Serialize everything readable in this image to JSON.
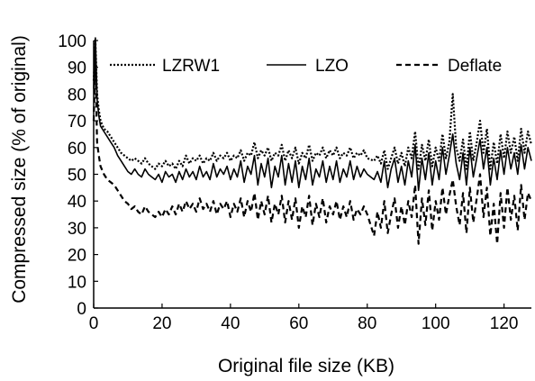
{
  "chart_data": {
    "type": "line",
    "title": "",
    "xlabel": "Original file size (KB)",
    "ylabel": "Compressed size (% of original)",
    "xlim": [
      0,
      128
    ],
    "ylim": [
      0,
      100
    ],
    "x_ticks": [
      0,
      20,
      40,
      60,
      80,
      100,
      120
    ],
    "y_ticks": [
      0,
      10,
      20,
      30,
      40,
      50,
      60,
      70,
      80,
      90,
      100
    ],
    "grid": false,
    "legend_position": "top",
    "series": [
      {
        "name": "LZRW1",
        "style": "dotted",
        "x": [
          0,
          0.5,
          1,
          1.5,
          2,
          3,
          4,
          5,
          6,
          7,
          8,
          9,
          10,
          11,
          12,
          13,
          14,
          15,
          16,
          17,
          18,
          19,
          20,
          21,
          22,
          23,
          24,
          25,
          26,
          27,
          28,
          29,
          30,
          31,
          32,
          33,
          34,
          35,
          36,
          37,
          38,
          39,
          40,
          41,
          42,
          43,
          44,
          45,
          46,
          47,
          48,
          49,
          50,
          51,
          52,
          53,
          54,
          55,
          56,
          57,
          58,
          59,
          60,
          61,
          62,
          63,
          64,
          65,
          66,
          67,
          68,
          69,
          70,
          71,
          72,
          73,
          74,
          75,
          76,
          77,
          78,
          79,
          80,
          82,
          83,
          84,
          85,
          86,
          87,
          88,
          89,
          90,
          91,
          92,
          93,
          94,
          95,
          96,
          97,
          98,
          99,
          100,
          101,
          102,
          103,
          104,
          105,
          106,
          107,
          108,
          109,
          110,
          111,
          112,
          113,
          114,
          115,
          116,
          117,
          118,
          119,
          120,
          121,
          122,
          123,
          124,
          125,
          126,
          127,
          128
        ],
        "y": [
          85,
          100,
          80,
          74,
          70,
          67,
          66,
          64,
          62,
          60,
          58,
          57,
          56,
          55,
          56,
          55,
          54,
          56,
          54,
          53,
          52,
          54,
          53,
          55,
          53,
          54,
          52,
          55,
          53,
          57,
          54,
          56,
          55,
          57,
          54,
          56,
          55,
          58,
          55,
          57,
          56,
          58,
          55,
          57,
          56,
          59,
          55,
          58,
          57,
          62,
          56,
          59,
          57,
          60,
          55,
          58,
          57,
          61,
          55,
          59,
          56,
          60,
          54,
          58,
          56,
          61,
          55,
          58,
          57,
          60,
          56,
          59,
          57,
          60,
          56,
          58,
          57,
          60,
          56,
          58,
          57,
          59,
          56,
          55,
          57,
          54,
          59,
          52,
          56,
          60,
          54,
          58,
          53,
          60,
          56,
          66,
          52,
          61,
          55,
          63,
          53,
          60,
          55,
          65,
          56,
          62,
          80,
          60,
          55,
          63,
          52,
          66,
          55,
          62,
          70,
          58,
          67,
          52,
          62,
          54,
          65,
          56,
          66,
          58,
          64,
          55,
          67,
          58,
          66,
          61
        ]
      },
      {
        "name": "LZO",
        "style": "solid",
        "x": [
          0,
          0.5,
          1,
          1.5,
          2,
          3,
          4,
          5,
          6,
          7,
          8,
          9,
          10,
          11,
          12,
          13,
          14,
          15,
          16,
          17,
          18,
          19,
          20,
          21,
          22,
          23,
          24,
          25,
          26,
          27,
          28,
          29,
          30,
          31,
          32,
          33,
          34,
          35,
          36,
          37,
          38,
          39,
          40,
          41,
          42,
          43,
          44,
          45,
          46,
          47,
          48,
          49,
          50,
          51,
          52,
          53,
          54,
          55,
          56,
          57,
          58,
          59,
          60,
          61,
          62,
          63,
          64,
          65,
          66,
          67,
          68,
          69,
          70,
          71,
          72,
          73,
          74,
          75,
          76,
          77,
          78,
          79,
          80,
          82,
          83,
          84,
          85,
          86,
          87,
          88,
          89,
          90,
          91,
          92,
          93,
          94,
          95,
          96,
          97,
          98,
          99,
          100,
          101,
          102,
          103,
          104,
          105,
          106,
          107,
          108,
          109,
          110,
          111,
          112,
          113,
          114,
          115,
          116,
          117,
          118,
          119,
          120,
          121,
          122,
          123,
          124,
          125,
          126,
          127,
          128
        ],
        "y": [
          82,
          101,
          78,
          72,
          68,
          66,
          64,
          62,
          60,
          57,
          55,
          53,
          51,
          50,
          52,
          50,
          49,
          52,
          50,
          49,
          48,
          50,
          47,
          51,
          49,
          50,
          47,
          51,
          48,
          52,
          49,
          51,
          48,
          53,
          49,
          51,
          48,
          54,
          49,
          52,
          50,
          53,
          48,
          52,
          49,
          55,
          47,
          53,
          50,
          57,
          46,
          54,
          49,
          56,
          45,
          53,
          49,
          57,
          46,
          54,
          47,
          55,
          45,
          53,
          48,
          56,
          46,
          52,
          49,
          55,
          47,
          53,
          48,
          55,
          47,
          52,
          49,
          55,
          48,
          53,
          49,
          52,
          50,
          48,
          51,
          47,
          55,
          45,
          52,
          56,
          47,
          53,
          46,
          55,
          49,
          61,
          44,
          56,
          48,
          58,
          46,
          55,
          48,
          60,
          50,
          57,
          65,
          54,
          48,
          58,
          46,
          60,
          49,
          56,
          63,
          52,
          60,
          46,
          56,
          48,
          59,
          50,
          60,
          52,
          58,
          50,
          61,
          52,
          60,
          55
        ]
      },
      {
        "name": "Deflate",
        "style": "dashed",
        "x": [
          0,
          0.5,
          1,
          1.5,
          2,
          3,
          4,
          5,
          6,
          7,
          8,
          9,
          10,
          11,
          12,
          13,
          14,
          15,
          16,
          17,
          18,
          19,
          20,
          21,
          22,
          23,
          24,
          25,
          26,
          27,
          28,
          29,
          30,
          31,
          32,
          33,
          34,
          35,
          36,
          37,
          38,
          39,
          40,
          41,
          42,
          43,
          44,
          45,
          46,
          47,
          48,
          49,
          50,
          51,
          52,
          53,
          54,
          55,
          56,
          57,
          58,
          59,
          60,
          61,
          62,
          63,
          64,
          65,
          66,
          67,
          68,
          69,
          70,
          71,
          72,
          73,
          74,
          75,
          76,
          77,
          78,
          79,
          80,
          82,
          83,
          84,
          85,
          86,
          87,
          88,
          89,
          90,
          91,
          92,
          93,
          94,
          95,
          96,
          97,
          98,
          99,
          100,
          101,
          102,
          103,
          104,
          105,
          106,
          107,
          108,
          109,
          110,
          111,
          112,
          113,
          114,
          115,
          116,
          117,
          118,
          119,
          120,
          121,
          122,
          123,
          124,
          125,
          126,
          127,
          128
        ],
        "y": [
          70,
          92,
          62,
          57,
          53,
          50,
          48,
          47,
          46,
          44,
          42,
          40,
          39,
          37,
          38,
          36,
          35,
          38,
          36,
          35,
          34,
          36,
          34,
          37,
          35,
          38,
          35,
          39,
          36,
          40,
          37,
          39,
          36,
          41,
          37,
          39,
          36,
          40,
          35,
          39,
          37,
          40,
          34,
          39,
          36,
          41,
          34,
          40,
          36,
          43,
          33,
          40,
          35,
          42,
          32,
          39,
          35,
          42,
          32,
          40,
          33,
          41,
          30,
          38,
          34,
          42,
          31,
          39,
          34,
          41,
          32,
          38,
          35,
          40,
          33,
          38,
          34,
          40,
          33,
          37,
          35,
          38,
          35,
          27,
          36,
          30,
          40,
          28,
          35,
          41,
          30,
          38,
          31,
          40,
          34,
          46,
          24,
          41,
          31,
          44,
          29,
          40,
          33,
          45,
          35,
          42,
          48,
          38,
          31,
          43,
          28,
          45,
          32,
          41,
          50,
          34,
          45,
          27,
          39,
          24,
          43,
          30,
          45,
          33,
          42,
          29,
          46,
          33,
          43,
          40
        ]
      }
    ]
  }
}
